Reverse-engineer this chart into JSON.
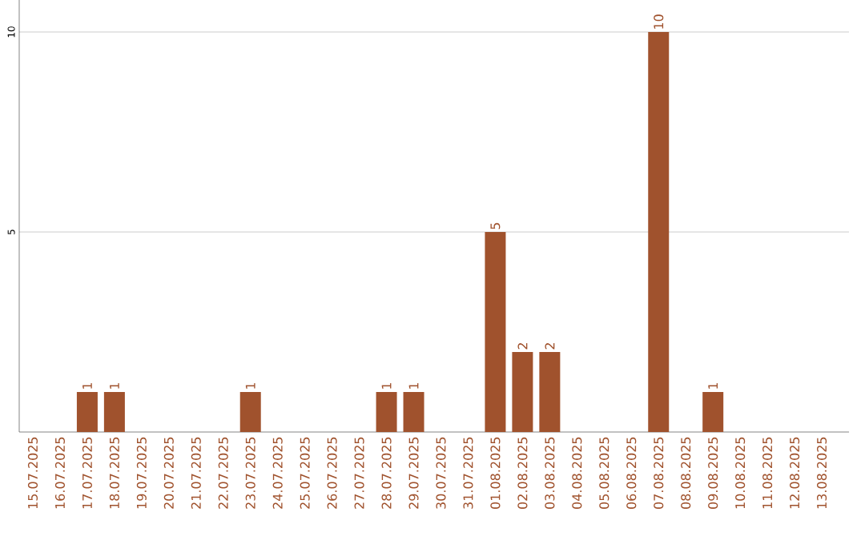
{
  "chart_data": {
    "type": "bar",
    "categories": [
      "15.07.2025",
      "16.07.2025",
      "17.07.2025",
      "18.07.2025",
      "19.07.2025",
      "20.07.2025",
      "21.07.2025",
      "22.07.2025",
      "23.07.2025",
      "24.07.2025",
      "25.07.2025",
      "26.07.2025",
      "27.07.2025",
      "28.07.2025",
      "29.07.2025",
      "30.07.2025",
      "31.07.2025",
      "01.08.2025",
      "02.08.2025",
      "03.08.2025",
      "04.08.2025",
      "05.08.2025",
      "06.08.2025",
      "07.08.2025",
      "08.08.2025",
      "09.08.2025",
      "10.08.2025",
      "11.08.2025",
      "12.08.2025",
      "13.08.2025"
    ],
    "values": [
      0,
      0,
      1,
      1,
      0,
      0,
      0,
      0,
      1,
      0,
      0,
      0,
      0,
      1,
      1,
      0,
      0,
      5,
      2,
      2,
      0,
      0,
      0,
      10,
      0,
      1,
      0,
      0,
      0,
      0
    ],
    "value_labels": [
      null,
      null,
      "1",
      "1",
      null,
      null,
      null,
      null,
      "1",
      null,
      null,
      null,
      null,
      "1",
      "1",
      null,
      null,
      "5",
      "2",
      "2",
      null,
      null,
      null,
      "10",
      null,
      "1",
      null,
      null,
      null,
      null
    ],
    "color": "#a0522d",
    "ylim": [
      0,
      10.8
    ],
    "yticks": [
      5,
      10
    ],
    "grid": "y"
  }
}
